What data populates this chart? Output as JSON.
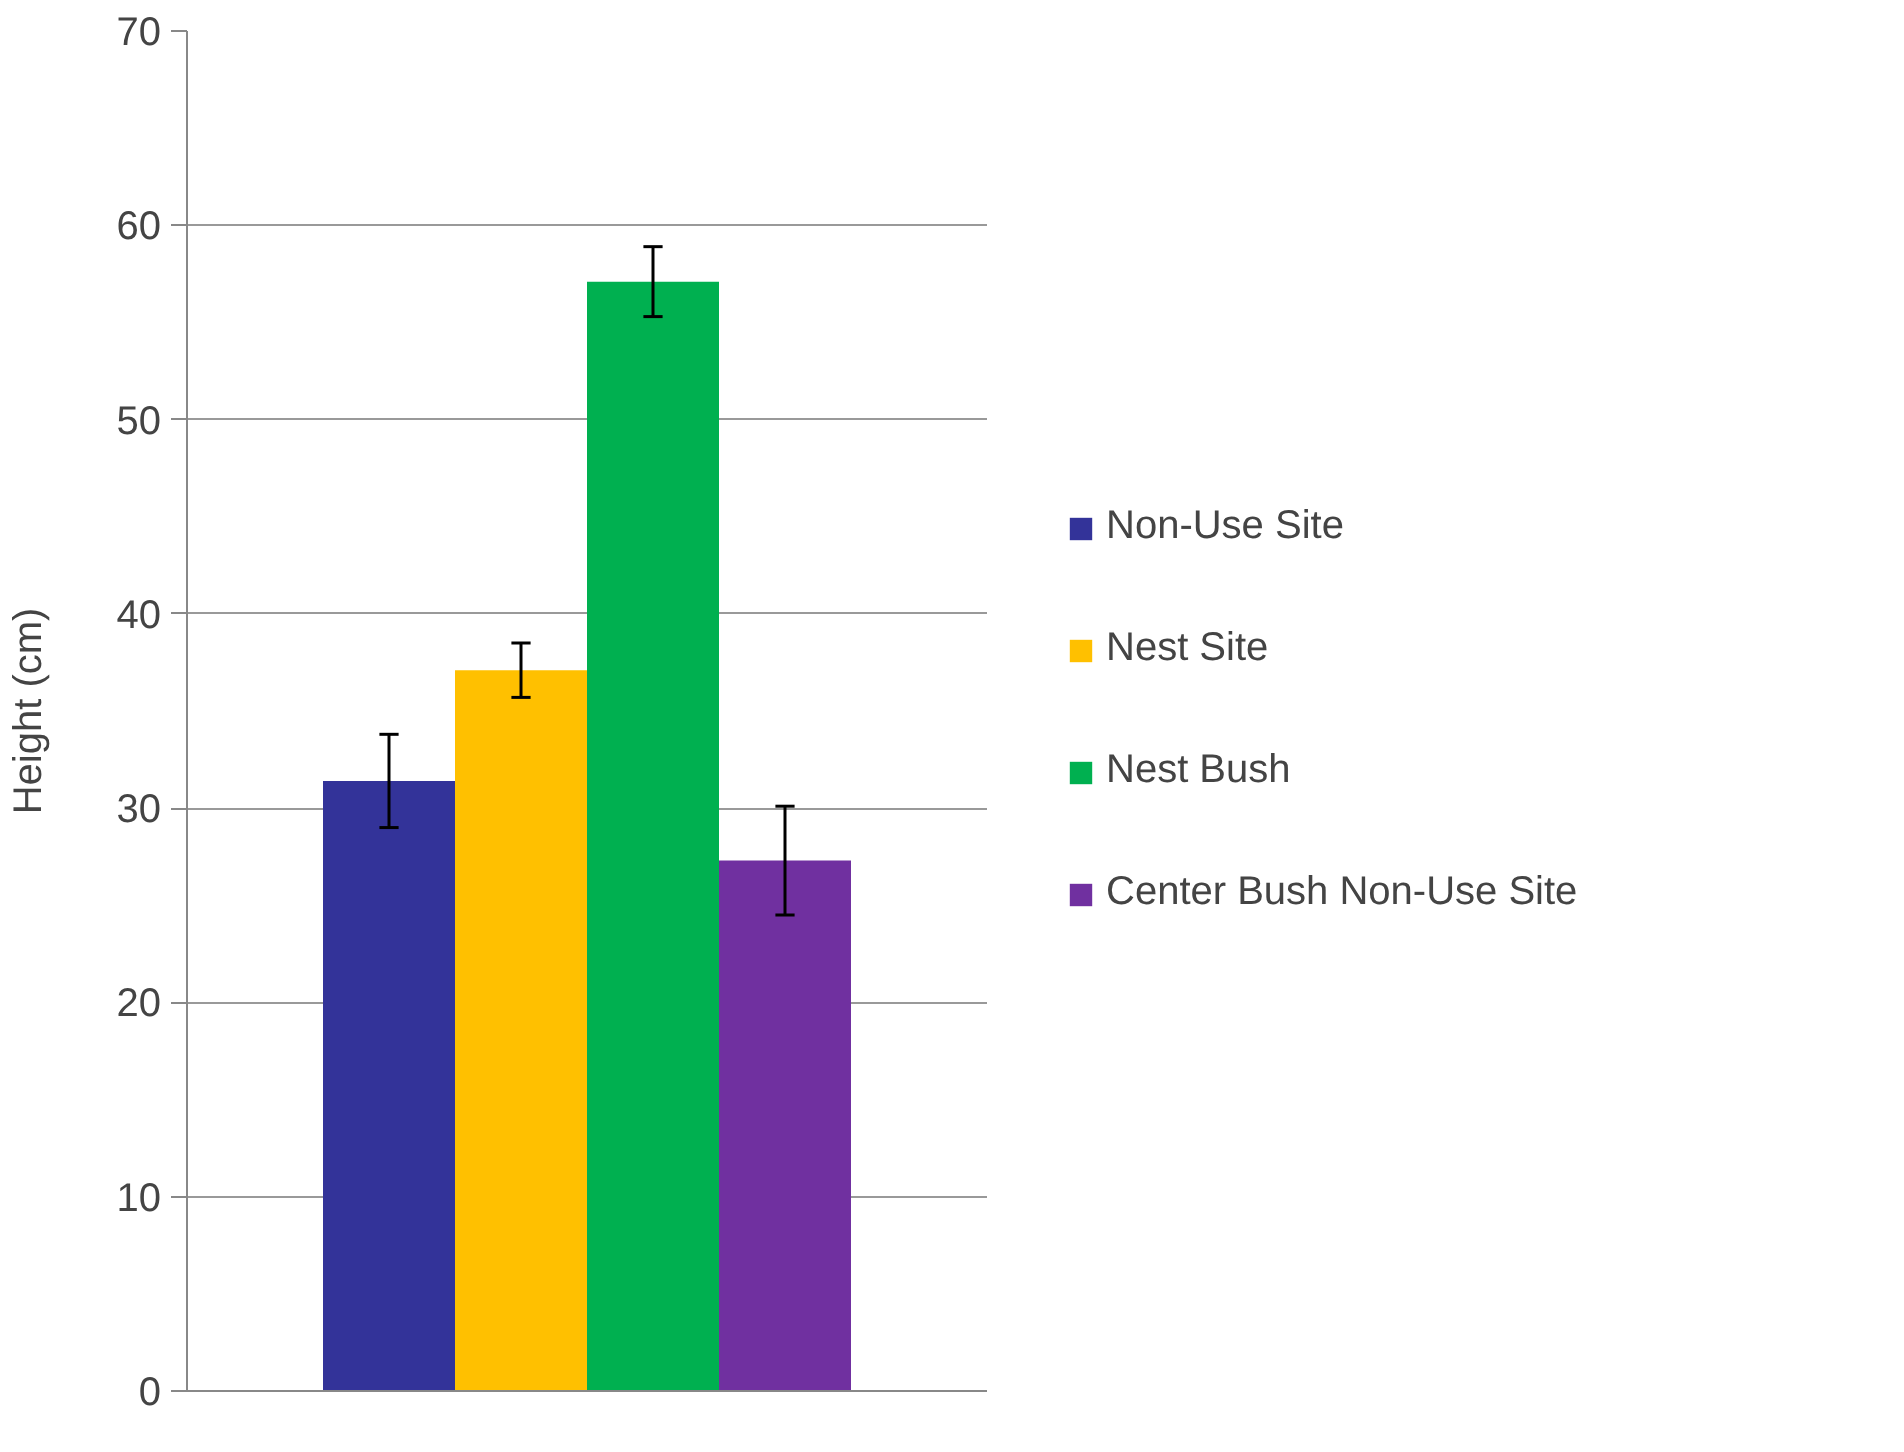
{
  "chart_data": {
    "type": "bar",
    "ylabel": "Height (cm)",
    "categories": [
      null
    ],
    "series": [
      {
        "name": "Non-Use Site",
        "color": "#333399",
        "values": [
          31.4
        ],
        "errors": [
          2.4
        ]
      },
      {
        "name": "Nest Site",
        "color": "#ffc000",
        "values": [
          37.1
        ],
        "errors": [
          1.4
        ]
      },
      {
        "name": "Nest Bush",
        "color": "#00b050",
        "values": [
          57.1
        ],
        "errors": [
          1.8
        ]
      },
      {
        "name": "Center Bush Non-Use Site",
        "color": "#7030a0",
        "values": [
          27.3
        ],
        "errors": [
          2.8
        ]
      }
    ],
    "ylim": [
      0,
      70
    ],
    "yticks": [
      0,
      10,
      20,
      30,
      40,
      50,
      60,
      70
    ],
    "grid": "y",
    "legend": "right",
    "tick_labels": "y"
  }
}
